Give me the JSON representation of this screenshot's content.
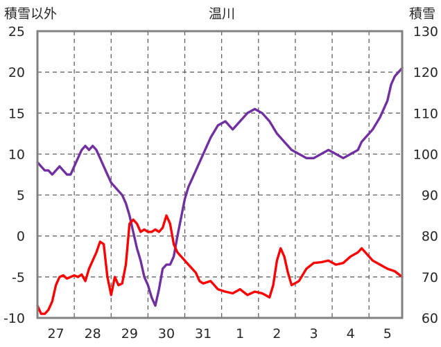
{
  "chart_data": {
    "type": "line",
    "title": "温川",
    "ylabel_left": "積雪以外",
    "ylabel_right": "積雪",
    "left_axis": {
      "min": -10,
      "max": 25,
      "ticks": [
        25,
        20,
        15,
        10,
        5,
        0,
        -5,
        -10
      ]
    },
    "right_axis": {
      "min": 60,
      "max": 130,
      "ticks": [
        130,
        120,
        110,
        100,
        90,
        80,
        70,
        60
      ]
    },
    "x_range": [
      26.5,
      36.4
    ],
    "day_labels": [
      "27",
      "28",
      "29",
      "30",
      "31",
      "1",
      "2",
      "3",
      "4",
      "5"
    ],
    "grid": true,
    "series": [
      {
        "axis": "right",
        "color": "#7030a0",
        "points": [
          [
            26.5,
            98
          ],
          [
            26.6,
            97
          ],
          [
            26.7,
            96
          ],
          [
            26.8,
            96
          ],
          [
            26.9,
            95
          ],
          [
            27.0,
            96
          ],
          [
            27.1,
            97
          ],
          [
            27.2,
            96
          ],
          [
            27.3,
            95
          ],
          [
            27.4,
            95
          ],
          [
            27.5,
            97
          ],
          [
            27.6,
            99
          ],
          [
            27.7,
            101
          ],
          [
            27.8,
            102
          ],
          [
            27.9,
            101
          ],
          [
            28.0,
            102
          ],
          [
            28.1,
            101
          ],
          [
            28.2,
            99
          ],
          [
            28.3,
            97
          ],
          [
            28.4,
            95
          ],
          [
            28.5,
            93
          ],
          [
            28.6,
            92
          ],
          [
            28.7,
            91
          ],
          [
            28.8,
            90
          ],
          [
            28.9,
            88
          ],
          [
            29.0,
            85
          ],
          [
            29.1,
            81
          ],
          [
            29.2,
            77
          ],
          [
            29.3,
            74
          ],
          [
            29.4,
            70
          ],
          [
            29.5,
            68
          ],
          [
            29.6,
            65
          ],
          [
            29.7,
            63
          ],
          [
            29.8,
            67
          ],
          [
            29.9,
            72
          ],
          [
            30.0,
            73
          ],
          [
            30.1,
            73
          ],
          [
            30.2,
            75
          ],
          [
            30.3,
            80
          ],
          [
            30.5,
            89
          ],
          [
            30.6,
            92
          ],
          [
            30.7,
            94
          ],
          [
            30.8,
            96
          ],
          [
            31.0,
            100
          ],
          [
            31.2,
            104
          ],
          [
            31.4,
            107
          ],
          [
            31.6,
            108
          ],
          [
            31.7,
            107
          ],
          [
            31.8,
            106
          ],
          [
            32.0,
            108
          ],
          [
            32.2,
            110
          ],
          [
            32.4,
            111
          ],
          [
            32.6,
            110
          ],
          [
            32.8,
            108
          ],
          [
            33.0,
            105
          ],
          [
            33.2,
            103
          ],
          [
            33.4,
            101
          ],
          [
            33.6,
            100
          ],
          [
            33.8,
            99
          ],
          [
            34.0,
            99
          ],
          [
            34.2,
            100
          ],
          [
            34.4,
            101
          ],
          [
            34.6,
            100
          ],
          [
            34.8,
            99
          ],
          [
            35.0,
            100
          ],
          [
            35.2,
            101
          ],
          [
            35.3,
            103
          ],
          [
            35.4,
            104
          ],
          [
            35.6,
            106
          ],
          [
            35.8,
            109
          ],
          [
            36.0,
            113
          ],
          [
            36.1,
            117
          ],
          [
            36.2,
            119
          ],
          [
            36.3,
            120
          ],
          [
            36.4,
            121
          ]
        ]
      },
      {
        "axis": "left",
        "color": "#ff0000",
        "points": [
          [
            26.5,
            -8.5
          ],
          [
            26.6,
            -9.5
          ],
          [
            26.7,
            -9.5
          ],
          [
            26.8,
            -9.0
          ],
          [
            26.9,
            -8.0
          ],
          [
            27.0,
            -6.0
          ],
          [
            27.1,
            -5.0
          ],
          [
            27.2,
            -4.8
          ],
          [
            27.3,
            -5.2
          ],
          [
            27.4,
            -5.0
          ],
          [
            27.5,
            -4.8
          ],
          [
            27.6,
            -5.0
          ],
          [
            27.7,
            -4.7
          ],
          [
            27.8,
            -5.5
          ],
          [
            27.9,
            -4.0
          ],
          [
            28.0,
            -3.0
          ],
          [
            28.1,
            -2.0
          ],
          [
            28.2,
            -0.7
          ],
          [
            28.3,
            -1.0
          ],
          [
            28.4,
            -5.0
          ],
          [
            28.5,
            -7.2
          ],
          [
            28.6,
            -5.0
          ],
          [
            28.7,
            -6.0
          ],
          [
            28.8,
            -5.8
          ],
          [
            28.9,
            -3.5
          ],
          [
            29.0,
            1.5
          ],
          [
            29.1,
            2.0
          ],
          [
            29.2,
            1.5
          ],
          [
            29.3,
            0.5
          ],
          [
            29.4,
            0.8
          ],
          [
            29.5,
            0.5
          ],
          [
            29.6,
            0.5
          ],
          [
            29.7,
            0.8
          ],
          [
            29.8,
            0.5
          ],
          [
            29.9,
            1.0
          ],
          [
            30.0,
            2.5
          ],
          [
            30.1,
            1.5
          ],
          [
            30.2,
            -1.0
          ],
          [
            30.3,
            -2.0
          ],
          [
            30.4,
            -2.5
          ],
          [
            30.6,
            -3.5
          ],
          [
            30.7,
            -4.0
          ],
          [
            30.8,
            -4.5
          ],
          [
            30.9,
            -5.5
          ],
          [
            31.0,
            -5.8
          ],
          [
            31.2,
            -5.5
          ],
          [
            31.4,
            -6.5
          ],
          [
            31.6,
            -6.8
          ],
          [
            31.8,
            -7.0
          ],
          [
            32.0,
            -6.5
          ],
          [
            32.2,
            -7.2
          ],
          [
            32.4,
            -6.8
          ],
          [
            32.6,
            -7.0
          ],
          [
            32.8,
            -7.5
          ],
          [
            32.9,
            -6.0
          ],
          [
            33.0,
            -3.0
          ],
          [
            33.1,
            -1.5
          ],
          [
            33.2,
            -2.5
          ],
          [
            33.3,
            -4.5
          ],
          [
            33.4,
            -6.0
          ],
          [
            33.6,
            -5.5
          ],
          [
            33.8,
            -4.0
          ],
          [
            34.0,
            -3.3
          ],
          [
            34.2,
            -3.2
          ],
          [
            34.4,
            -3.0
          ],
          [
            34.6,
            -3.5
          ],
          [
            34.8,
            -3.3
          ],
          [
            35.0,
            -2.5
          ],
          [
            35.2,
            -2.0
          ],
          [
            35.3,
            -1.5
          ],
          [
            35.4,
            -2.0
          ],
          [
            35.6,
            -3.0
          ],
          [
            35.8,
            -3.5
          ],
          [
            36.0,
            -4.0
          ],
          [
            36.2,
            -4.3
          ],
          [
            36.4,
            -5.0
          ]
        ]
      }
    ]
  }
}
